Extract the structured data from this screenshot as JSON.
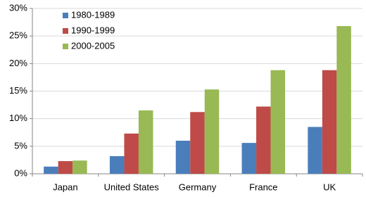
{
  "chart_data": {
    "type": "bar",
    "categories": [
      "Japan",
      "United States",
      "Germany",
      "France",
      "UK"
    ],
    "series": [
      {
        "name": "1980-1989",
        "color": "#4a7ebb",
        "values": [
          1.3,
          3.2,
          6.0,
          5.6,
          8.5
        ]
      },
      {
        "name": "1990-1999",
        "color": "#be4b48",
        "values": [
          2.3,
          7.3,
          11.2,
          12.2,
          18.8
        ]
      },
      {
        "name": "2000-2005",
        "color": "#98b954",
        "values": [
          2.4,
          11.5,
          15.3,
          18.8,
          26.8
        ]
      }
    ],
    "ylim": [
      0,
      30
    ],
    "yticks": [
      {
        "value": 0,
        "label": "0%"
      },
      {
        "value": 5,
        "label": "5%"
      },
      {
        "value": 10,
        "label": "10%"
      },
      {
        "value": 15,
        "label": "15%"
      },
      {
        "value": 20,
        "label": "20%"
      },
      {
        "value": 25,
        "label": "25%"
      },
      {
        "value": 30,
        "label": "30%"
      }
    ],
    "grid": true,
    "legend": "upper-left"
  }
}
